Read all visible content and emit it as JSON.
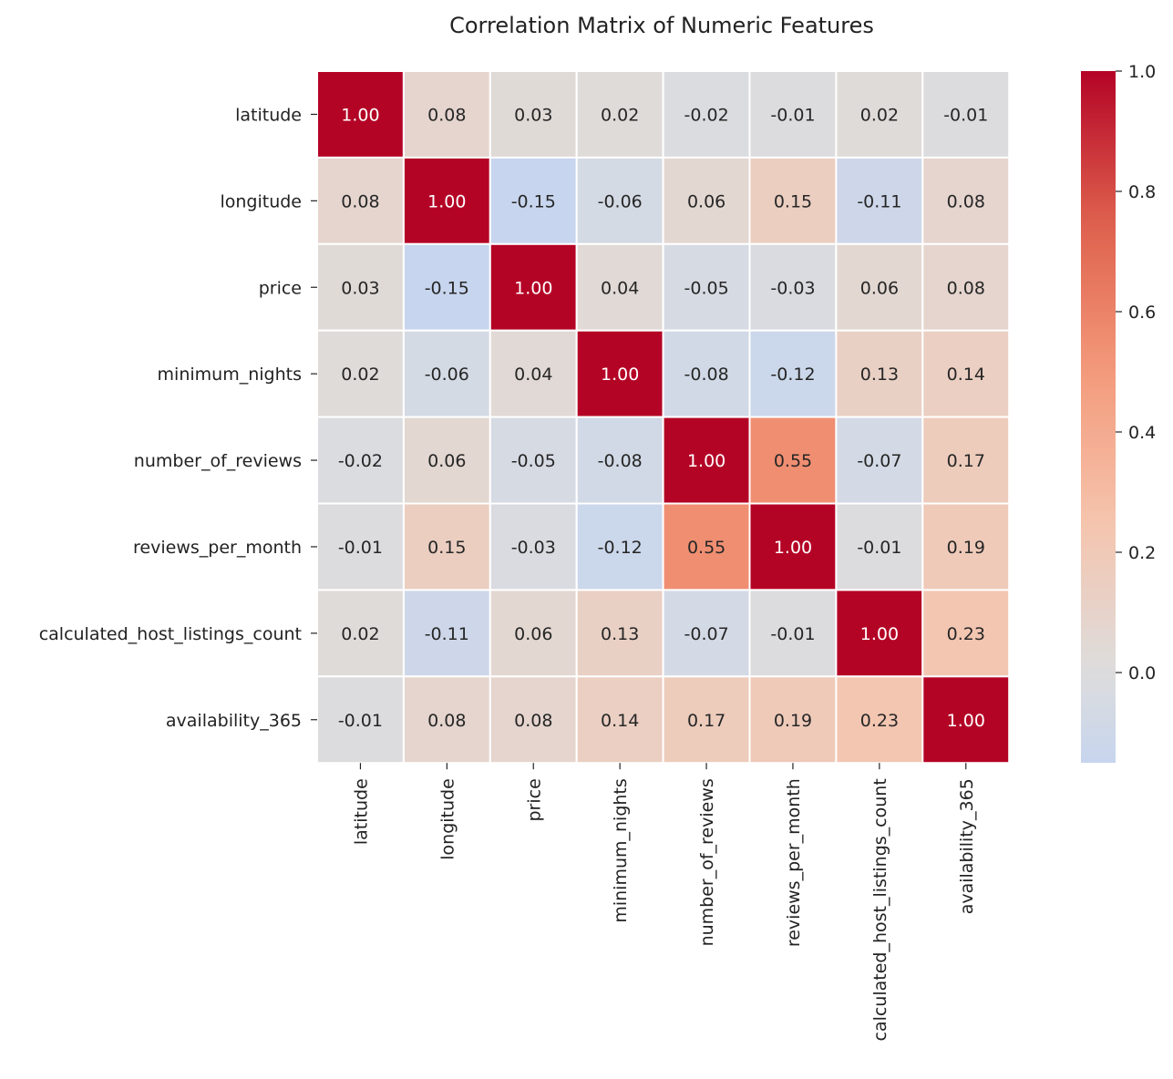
{
  "chart_data": {
    "type": "heatmap",
    "title": "Correlation Matrix of Numeric Features",
    "row_labels": [
      "latitude",
      "longitude",
      "price",
      "minimum_nights",
      "number_of_reviews",
      "reviews_per_month",
      "calculated_host_listings_count",
      "availability_365"
    ],
    "col_labels": [
      "latitude",
      "longitude",
      "price",
      "minimum_nights",
      "number_of_reviews",
      "reviews_per_month",
      "calculated_host_listings_count",
      "availability_365"
    ],
    "values": [
      [
        1.0,
        0.08,
        0.03,
        0.02,
        -0.02,
        -0.01,
        0.02,
        -0.01
      ],
      [
        0.08,
        1.0,
        -0.15,
        -0.06,
        0.06,
        0.15,
        -0.11,
        0.08
      ],
      [
        0.03,
        -0.15,
        1.0,
        0.04,
        -0.05,
        -0.03,
        0.06,
        0.08
      ],
      [
        0.02,
        -0.06,
        0.04,
        1.0,
        -0.08,
        -0.12,
        0.13,
        0.14
      ],
      [
        -0.02,
        0.06,
        -0.05,
        -0.08,
        1.0,
        0.55,
        -0.07,
        0.17
      ],
      [
        -0.01,
        0.15,
        -0.03,
        -0.12,
        0.55,
        1.0,
        -0.01,
        0.19
      ],
      [
        0.02,
        -0.11,
        0.06,
        0.13,
        -0.07,
        -0.01,
        1.0,
        0.23
      ],
      [
        -0.01,
        0.08,
        0.08,
        0.14,
        0.17,
        0.19,
        0.23,
        1.0
      ]
    ],
    "value_format": "2 decimals",
    "colormap": "coolwarm",
    "vmin": -0.15,
    "vmax": 1.0,
    "center": 0,
    "colorbar": {
      "range": [
        -0.15,
        1.0
      ],
      "ticks": [
        0.0,
        0.2,
        0.4,
        0.6,
        0.8,
        1.0
      ],
      "tick_labels": [
        "0.0",
        "0.2",
        "0.4",
        "0.6",
        "0.8",
        "1.0"
      ],
      "placement": "right"
    },
    "xlabel": "",
    "ylabel": ""
  }
}
